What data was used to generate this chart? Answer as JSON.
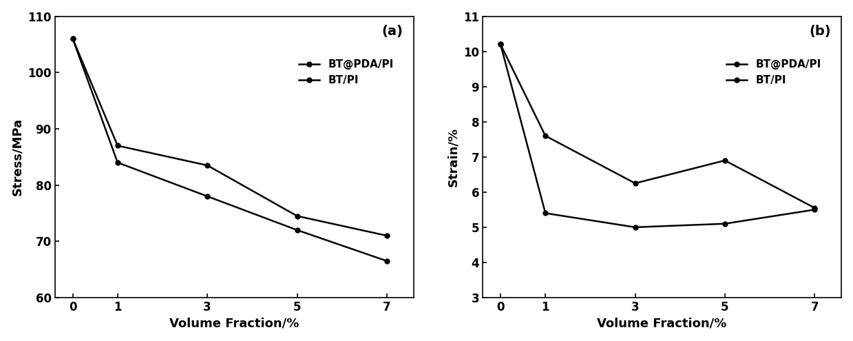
{
  "x": [
    0,
    1,
    3,
    5,
    7
  ],
  "stress_btpda": [
    106,
    87,
    83.5,
    74.5,
    71
  ],
  "stress_bt": [
    106,
    84,
    78,
    72,
    66.5
  ],
  "strain_btpda": [
    10.2,
    7.6,
    6.25,
    6.9,
    5.55
  ],
  "strain_bt": [
    10.2,
    5.4,
    5.0,
    5.1,
    5.5
  ],
  "stress_ylim": [
    60,
    110
  ],
  "stress_yticks": [
    60,
    70,
    80,
    90,
    100,
    110
  ],
  "strain_ylim": [
    3,
    11
  ],
  "strain_yticks": [
    3,
    4,
    5,
    6,
    7,
    8,
    9,
    10,
    11
  ],
  "xticks": [
    0,
    1,
    3,
    5,
    7
  ],
  "xlabel": "Volume Fraction/%",
  "ylabel_a": "Stress/MPa",
  "ylabel_b": "Strain/%",
  "label_btpda": "BT@PDA/PI",
  "label_bt": "BT/PI",
  "panel_a": "(a)",
  "panel_b": "(b)",
  "line_color": "#000000",
  "marker": "o",
  "markersize": 5,
  "linewidth": 1.8,
  "background_color": "#ffffff",
  "legend_fontsize": 11,
  "tick_labelsize": 12,
  "axis_labelsize": 13,
  "panel_fontsize": 14
}
